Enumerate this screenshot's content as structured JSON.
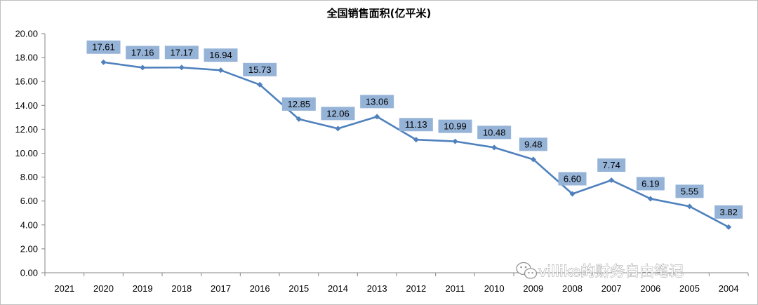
{
  "chart_data": {
    "type": "line",
    "title": "全国销售面积(亿平米)",
    "categories": [
      "2021",
      "2020",
      "2019",
      "2018",
      "2017",
      "2016",
      "2015",
      "2014",
      "2013",
      "2012",
      "2011",
      "2010",
      "2009",
      "2008",
      "2007",
      "2006",
      "2005",
      "2004"
    ],
    "series": [
      {
        "values": [
          null,
          17.61,
          17.16,
          17.17,
          16.94,
          15.73,
          12.85,
          12.06,
          13.06,
          11.13,
          10.99,
          10.48,
          9.48,
          6.6,
          7.74,
          6.19,
          5.55,
          3.82
        ],
        "labels": [
          "",
          "17.61",
          "17.16",
          "17.17",
          "16.94",
          "15.73",
          "12.85",
          "12.06",
          "13.06",
          "11.13",
          "10.99",
          "10.48",
          "9.48",
          "6.60",
          "7.74",
          "6.19",
          "5.55",
          "3.82"
        ],
        "color": "#4f81bd"
      }
    ],
    "yticks": [
      "0.00",
      "2.00",
      "4.00",
      "6.00",
      "8.00",
      "10.00",
      "12.00",
      "14.00",
      "16.00",
      "18.00",
      "20.00"
    ],
    "ylim": [
      0,
      20
    ],
    "grid": false,
    "legend": "none",
    "label_fill": "#95b3d7"
  },
  "watermark": {
    "icon": "wechat-icon",
    "text": "villike的财务自由笔记"
  }
}
